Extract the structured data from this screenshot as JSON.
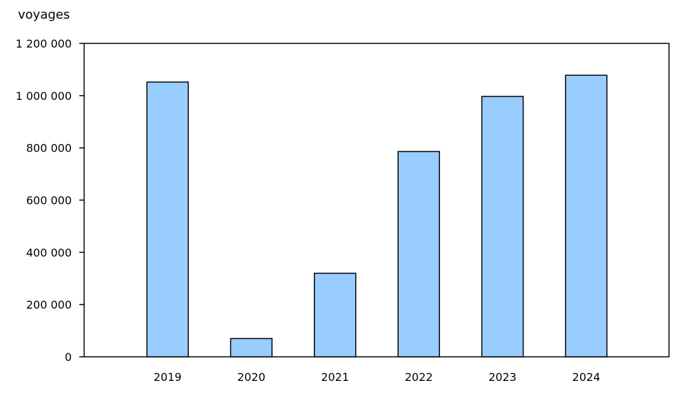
{
  "chart_data": {
    "type": "bar",
    "title": "",
    "xlabel": "",
    "ylabel": "voyages",
    "categories": [
      "2019",
      "2020",
      "2021",
      "2022",
      "2023",
      "2024"
    ],
    "series": [
      {
        "values": [
          1052000,
          70000,
          320000,
          786000,
          997000,
          1078000
        ]
      }
    ],
    "ylim": [
      0,
      1200000
    ],
    "yticks": [
      0,
      200000,
      400000,
      600000,
      800000,
      1000000,
      1200000
    ],
    "ytick_labels": [
      "0",
      "200 000",
      "400 000",
      "600 000",
      "800 000",
      "1 000 000",
      "1 200 000"
    ],
    "grid": false,
    "legend": "none",
    "colors": {
      "bar_fill": "#99CCFF",
      "bar_stroke": "#000000",
      "axis": "#000000"
    }
  }
}
